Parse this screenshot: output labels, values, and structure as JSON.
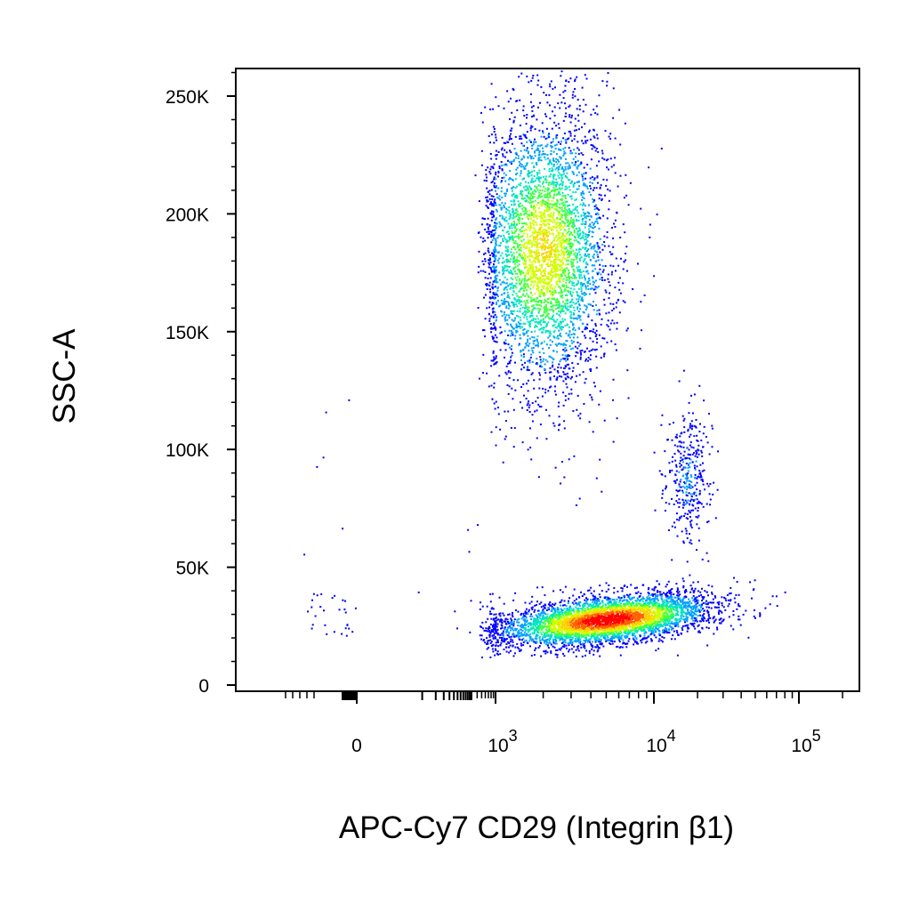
{
  "chart_data": {
    "type": "scatter",
    "subtype": "flow-cytometry-density-dot-plot",
    "xlabel": "APC-Cy7 CD29 (Integrin β1)",
    "ylabel": "SSC-A",
    "x_scale": "biexponential",
    "y_scale": "linear",
    "ylim": [
      0,
      262144
    ],
    "xlim": [
      -2000,
      200000
    ],
    "y_ticks": [
      {
        "value": 0,
        "label": "0"
      },
      {
        "value": 50000,
        "label": "50K"
      },
      {
        "value": 100000,
        "label": "100K"
      },
      {
        "value": 150000,
        "label": "150K"
      },
      {
        "value": 200000,
        "label": "200K"
      },
      {
        "value": 250000,
        "label": "250K"
      }
    ],
    "x_ticks": [
      {
        "value": 0,
        "base": "0",
        "exp": ""
      },
      {
        "value": 1000,
        "base": "10",
        "exp": "3"
      },
      {
        "value": 10000,
        "base": "10",
        "exp": "4"
      },
      {
        "value": 100000,
        "base": "10",
        "exp": "5"
      }
    ],
    "grid": false,
    "legend": "none",
    "density_colormap": [
      "#0000ff",
      "#00a0ff",
      "#00e5c0",
      "#40ff40",
      "#d0ff00",
      "#ffd000",
      "#ff6000",
      "#ff0000"
    ],
    "populations": [
      {
        "x_center": 2000,
        "y_center": 185000,
        "x_spread_decades": 0.22,
        "y_spread": 30000,
        "relative_count": 0.45,
        "peak_density": 0.65
      },
      {
        "x_center": 5000,
        "y_center": 28000,
        "x_spread_decades": 0.35,
        "y_spread": 5000,
        "relative_count": 0.48,
        "peak_density": 1.0
      },
      {
        "x_center": 17000,
        "y_center": 88000,
        "x_spread_decades": 0.08,
        "y_spread": 15000,
        "relative_count": 0.04,
        "peak_density": 0.15
      }
    ]
  }
}
